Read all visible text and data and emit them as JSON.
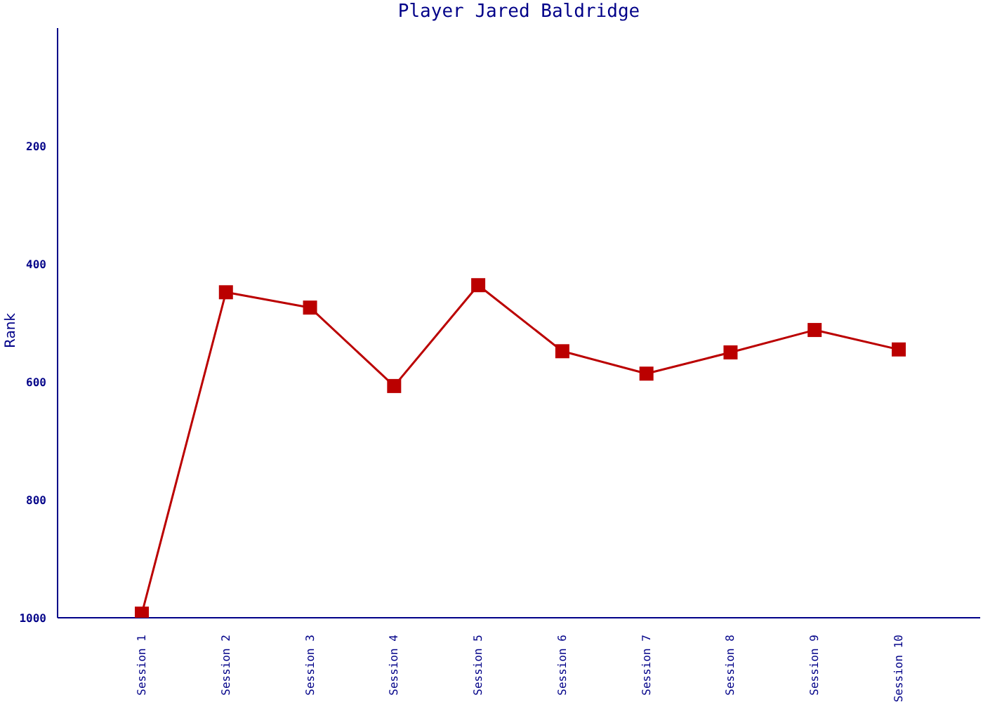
{
  "chart_data": {
    "type": "line",
    "title": "Player Jared Baldridge",
    "ylabel": "Rank",
    "categories": [
      "Session 1",
      "Session 2",
      "Session 3",
      "Session 4",
      "Session 5",
      "Session 6",
      "Session 7",
      "Session 8",
      "Session 9",
      "Session 10"
    ],
    "series": [
      {
        "color": "#bb0000",
        "values": [
          993,
          448,
          474,
          607,
          436,
          548,
          586,
          550,
          512,
          545
        ]
      }
    ],
    "ylim": [
      1000,
      0
    ],
    "yticks": [
      200,
      400,
      600,
      800,
      1000
    ],
    "grid": false,
    "legend": false,
    "marker": "square",
    "line_style": "solid"
  }
}
